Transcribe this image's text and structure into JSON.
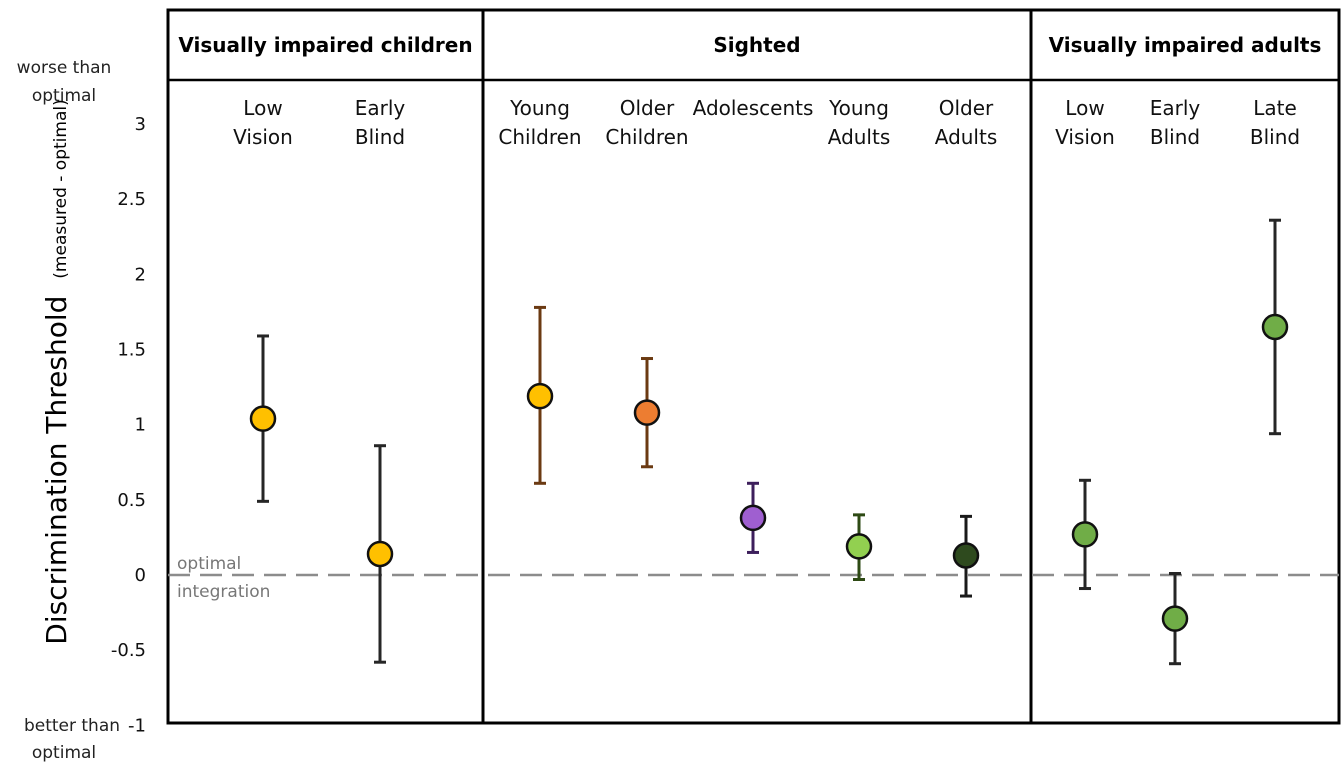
{
  "chart_data": {
    "type": "scatter",
    "ylabel": "Discrimination Threshold",
    "ylabel_sub": "(measured - optimal)",
    "ylim": [
      -1,
      3.35
    ],
    "yticks": [
      "3",
      "2.5",
      "2",
      "1.5",
      "1",
      "0.5",
      "0",
      "-0.5",
      "-1"
    ],
    "ytick_values": [
      3,
      2.5,
      2,
      1.5,
      1,
      0.5,
      0,
      -0.5,
      -1
    ],
    "top_annotation": [
      "worse than",
      "optimal"
    ],
    "bottom_annotation_prefix": "better than",
    "bottom_annotation_line2": "optimal",
    "reference_line": {
      "value": 0,
      "label_line1": "optimal",
      "label_line2": "integration",
      "color": "#8c8c8c"
    },
    "grid": false,
    "groups": [
      {
        "title": "Visually impaired children",
        "points": [
          {
            "label_line1": "Low",
            "label_line2": "Vision",
            "mean": 1.04,
            "lower": 0.49,
            "upper": 1.59,
            "fill": "#FFC000",
            "bar": "#262626"
          },
          {
            "label_line1": "Early",
            "label_line2": "Blind",
            "mean": 0.14,
            "lower": -0.58,
            "upper": 0.86,
            "fill": "#FFC000",
            "bar": "#262626"
          }
        ]
      },
      {
        "title": "Sighted",
        "points": [
          {
            "label_line1": "Young",
            "label_line2": "Children",
            "mean": 1.19,
            "lower": 0.61,
            "upper": 1.78,
            "fill": "#FFC000",
            "bar": "#6B3A12"
          },
          {
            "label_line1": "Older",
            "label_line2": "Children",
            "mean": 1.08,
            "lower": 0.72,
            "upper": 1.44,
            "fill": "#ED7D31",
            "bar": "#6B3A12"
          },
          {
            "label_line1": "Adolescents",
            "label_line2": "",
            "mean": 0.38,
            "lower": 0.15,
            "upper": 0.61,
            "fill": "#9F5FD0",
            "bar": "#3D1F5C"
          },
          {
            "label_line1": "Young",
            "label_line2": "Adults",
            "mean": 0.19,
            "lower": -0.03,
            "upper": 0.4,
            "fill": "#92D050",
            "bar": "#2E4A14"
          },
          {
            "label_line1": "Older",
            "label_line2": "Adults",
            "mean": 0.13,
            "lower": -0.14,
            "upper": 0.39,
            "fill": "#2E4A1E",
            "bar": "#1A1A1A"
          }
        ]
      },
      {
        "title": "Visually impaired adults",
        "points": [
          {
            "label_line1": "Low",
            "label_line2": "Vision",
            "mean": 0.27,
            "lower": -0.09,
            "upper": 0.63,
            "fill": "#70AD47",
            "bar": "#262626"
          },
          {
            "label_line1": "Early",
            "label_line2": "Blind",
            "mean": -0.29,
            "lower": -0.59,
            "upper": 0.01,
            "fill": "#70AD47",
            "bar": "#262626"
          },
          {
            "label_line1": "Late",
            "label_line2": "Blind",
            "mean": 1.65,
            "lower": 0.94,
            "upper": 2.36,
            "fill": "#70AD47",
            "bar": "#262626"
          }
        ]
      }
    ]
  }
}
